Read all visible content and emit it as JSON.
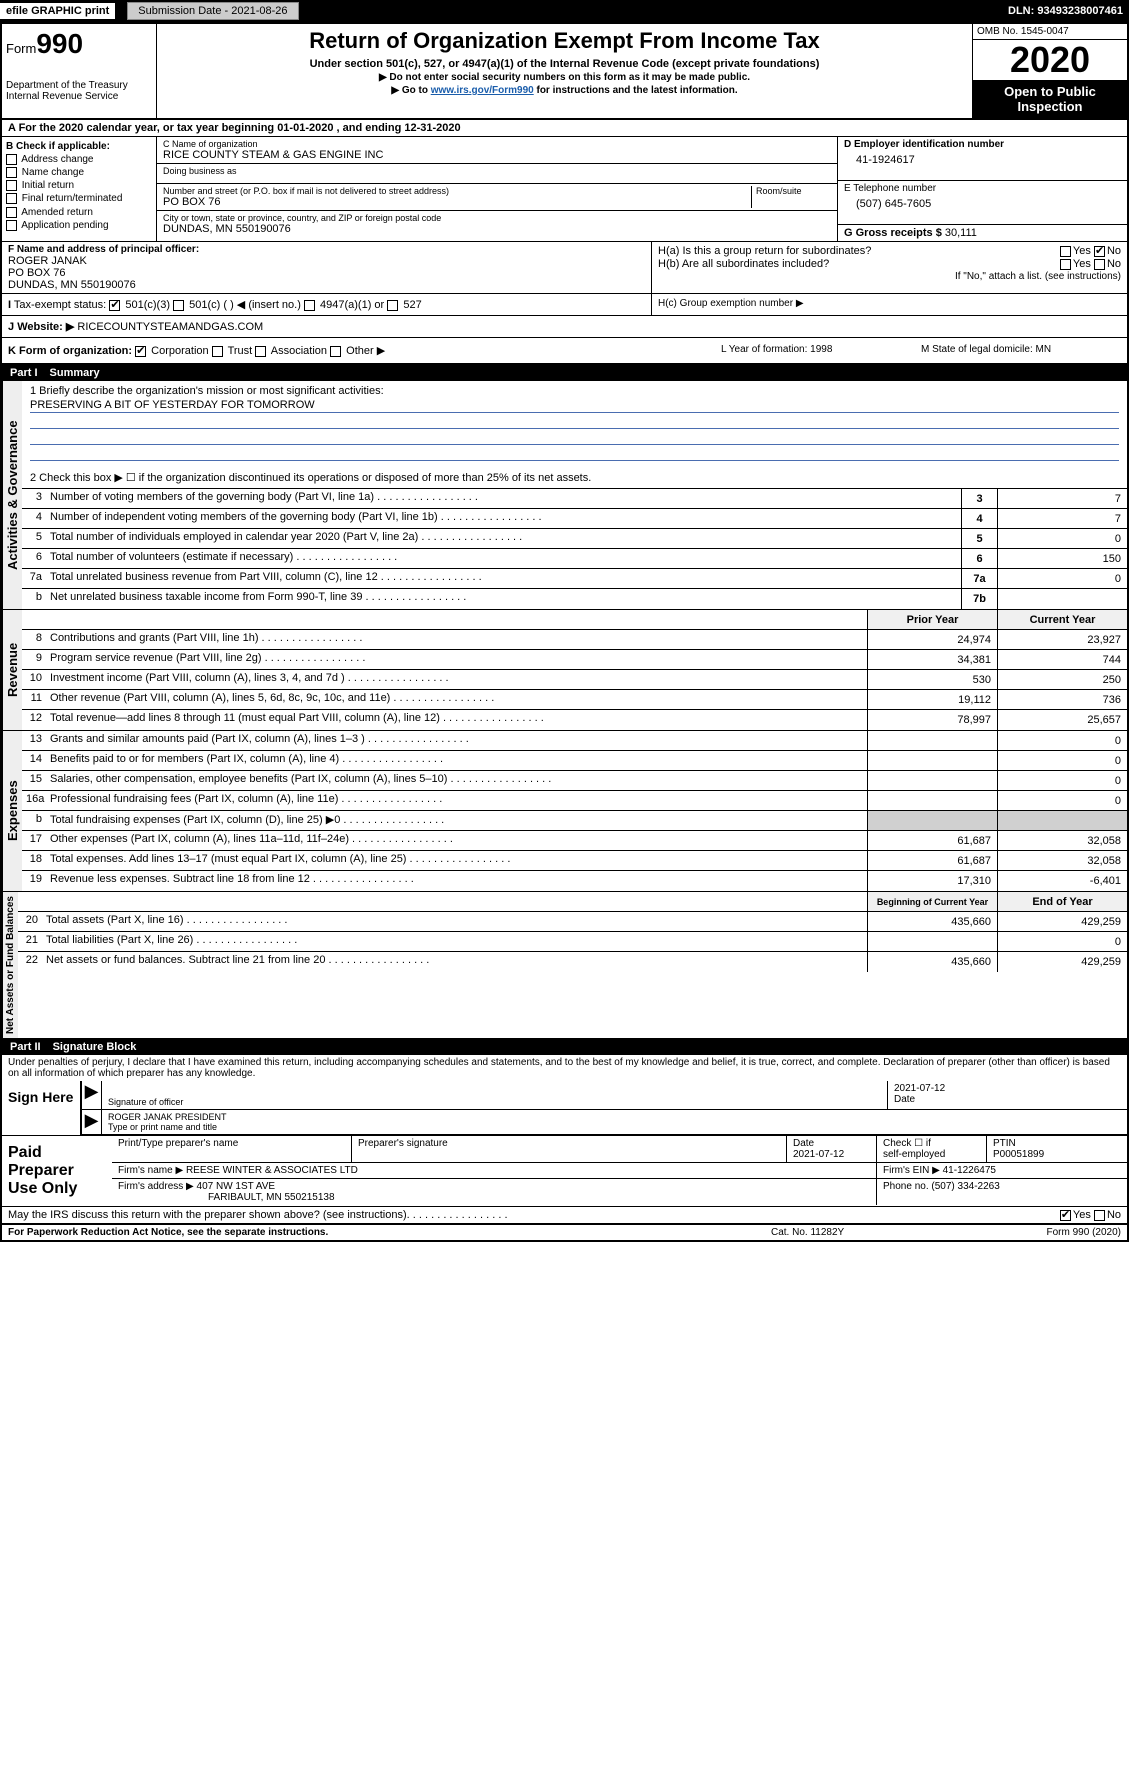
{
  "top": {
    "efile": "efile GRAPHIC print",
    "submission": "Submission Date - 2021-08-26",
    "dln": "DLN: 93493238007461"
  },
  "header": {
    "form_word": "Form",
    "form_num": "990",
    "dept": "Department of the Treasury\nInternal Revenue Service",
    "title": "Return of Organization Exempt From Income Tax",
    "sub": "Under section 501(c), 527, or 4947(a)(1) of the Internal Revenue Code (except private foundations)",
    "note1": "▶ Do not enter social security numbers on this form as it may be made public.",
    "note2_pre": "▶ Go to ",
    "note2_link": "www.irs.gov/Form990",
    "note2_post": " for instructions and the latest information.",
    "omb": "OMB No. 1545-0047",
    "year": "2020",
    "open": "Open to Public Inspection"
  },
  "row_a": "A For the 2020 calendar year, or tax year beginning 01-01-2020    , and ending 12-31-2020",
  "check_b": {
    "title": "B Check if applicable:",
    "items": [
      "Address change",
      "Name change",
      "Initial return",
      "Final return/terminated",
      "Amended return",
      "Application pending"
    ]
  },
  "org": {
    "c_label": "C Name of organization",
    "name": "RICE COUNTY STEAM & GAS ENGINE INC",
    "dba_label": "Doing business as",
    "dba": "",
    "addr_label": "Number and street (or P.O. box if mail is not delivered to street address)",
    "room_label": "Room/suite",
    "addr": "PO BOX 76",
    "city_label": "City or town, state or province, country, and ZIP or foreign postal code",
    "city": "DUNDAS, MN  550190076"
  },
  "col_d": {
    "d_label": "D Employer identification number",
    "ein": "41-1924617",
    "e_label": "E Telephone number",
    "phone": "(507) 645-7605",
    "g_label": "G Gross receipts $",
    "gross": "30,111"
  },
  "f": {
    "label": "F  Name and address of principal officer:",
    "name": "ROGER JANAK",
    "addr1": "PO BOX 76",
    "addr2": "DUNDAS, MN  550190076"
  },
  "h": {
    "a": "H(a)  Is this a group return for subordinates?",
    "b": "H(b)  Are all subordinates included?",
    "c": "H(c)  Group exemption number ▶",
    "note": "If \"No,\" attach a list. (see instructions)"
  },
  "i": {
    "label": "Tax-exempt status:",
    "opts": [
      "501(c)(3)",
      "501(c) (  ) ◀ (insert no.)",
      "4947(a)(1) or",
      "527"
    ]
  },
  "j": {
    "label": "J",
    "text": "Website: ▶",
    "val": "RICECOUNTYSTEAMANDGAS.COM"
  },
  "k": {
    "label": "K Form of organization:",
    "opts": [
      "Corporation",
      "Trust",
      "Association",
      "Other ▶"
    ],
    "l": "L Year of formation: 1998",
    "m": "M State of legal domicile: MN"
  },
  "part1": {
    "num": "Part I",
    "title": "Summary"
  },
  "mission": {
    "q": "1  Briefly describe the organization's mission or most significant activities:",
    "ans": "PRESERVING A BIT OF YESTERDAY FOR TOMORROW"
  },
  "line2": "2   Check this box ▶ ☐  if the organization discontinued its operations or disposed of more than 25% of its net assets.",
  "gov_lines": [
    {
      "n": "3",
      "t": "Number of voting members of the governing body (Part VI, line 1a)",
      "b": "3",
      "v": "7"
    },
    {
      "n": "4",
      "t": "Number of independent voting members of the governing body (Part VI, line 1b)",
      "b": "4",
      "v": "7"
    },
    {
      "n": "5",
      "t": "Total number of individuals employed in calendar year 2020 (Part V, line 2a)",
      "b": "5",
      "v": "0"
    },
    {
      "n": "6",
      "t": "Total number of volunteers (estimate if necessary)",
      "b": "6",
      "v": "150"
    },
    {
      "n": "7a",
      "t": "Total unrelated business revenue from Part VIII, column (C), line 12",
      "b": "7a",
      "v": "0"
    },
    {
      "n": "b",
      "t": "Net unrelated business taxable income from Form 990-T, line 39",
      "b": "7b",
      "v": ""
    }
  ],
  "rev_head": {
    "prior": "Prior Year",
    "curr": "Current Year"
  },
  "revenue": [
    {
      "n": "8",
      "t": "Contributions and grants (Part VIII, line 1h)",
      "p": "24,974",
      "c": "23,927"
    },
    {
      "n": "9",
      "t": "Program service revenue (Part VIII, line 2g)",
      "p": "34,381",
      "c": "744"
    },
    {
      "n": "10",
      "t": "Investment income (Part VIII, column (A), lines 3, 4, and 7d )",
      "p": "530",
      "c": "250"
    },
    {
      "n": "11",
      "t": "Other revenue (Part VIII, column (A), lines 5, 6d, 8c, 9c, 10c, and 11e)",
      "p": "19,112",
      "c": "736"
    },
    {
      "n": "12",
      "t": "Total revenue—add lines 8 through 11 (must equal Part VIII, column (A), line 12)",
      "p": "78,997",
      "c": "25,657"
    }
  ],
  "expenses": [
    {
      "n": "13",
      "t": "Grants and similar amounts paid (Part IX, column (A), lines 1–3 )",
      "p": "",
      "c": "0"
    },
    {
      "n": "14",
      "t": "Benefits paid to or for members (Part IX, column (A), line 4)",
      "p": "",
      "c": "0"
    },
    {
      "n": "15",
      "t": "Salaries, other compensation, employee benefits (Part IX, column (A), lines 5–10)",
      "p": "",
      "c": "0"
    },
    {
      "n": "16a",
      "t": "Professional fundraising fees (Part IX, column (A), line 11e)",
      "p": "",
      "c": "0"
    },
    {
      "n": "b",
      "t": "Total fundraising expenses (Part IX, column (D), line 25) ▶0",
      "p": "shade",
      "c": "shade"
    },
    {
      "n": "17",
      "t": "Other expenses (Part IX, column (A), lines 11a–11d, 11f–24e)",
      "p": "61,687",
      "c": "32,058"
    },
    {
      "n": "18",
      "t": "Total expenses. Add lines 13–17 (must equal Part IX, column (A), line 25)",
      "p": "61,687",
      "c": "32,058"
    },
    {
      "n": "19",
      "t": "Revenue less expenses. Subtract line 18 from line 12",
      "p": "17,310",
      "c": "-6,401"
    }
  ],
  "net_head": {
    "prior": "Beginning of Current Year",
    "curr": "End of Year"
  },
  "netassets": [
    {
      "n": "20",
      "t": "Total assets (Part X, line 16)",
      "p": "435,660",
      "c": "429,259"
    },
    {
      "n": "21",
      "t": "Total liabilities (Part X, line 26)",
      "p": "",
      "c": "0"
    },
    {
      "n": "22",
      "t": "Net assets or fund balances. Subtract line 21 from line 20",
      "p": "435,660",
      "c": "429,259"
    }
  ],
  "part2": {
    "num": "Part II",
    "title": "Signature Block"
  },
  "sig": {
    "text": "Under penalties of perjury, I declare that I have examined this return, including accompanying schedules and statements, and to the best of my knowledge and belief, it is true, correct, and complete. Declaration of preparer (other than officer) is based on all information of which preparer has any knowledge.",
    "sign_here": "Sign Here",
    "sig_officer": "Signature of officer",
    "date1": "2021-07-12",
    "date_label": "Date",
    "name_title": "ROGER JANAK  PRESIDENT",
    "type_label": "Type or print name and title"
  },
  "paid": {
    "label": "Paid Preparer Use Only",
    "h1": "Print/Type preparer's name",
    "h2": "Preparer's signature",
    "h3": "Date",
    "date": "2021-07-12",
    "h4_a": "Check ☐ if",
    "h4_b": "self-employed",
    "h5": "PTIN",
    "ptin": "P00051899",
    "firm_name_l": "Firm's name    ▶",
    "firm_name": "REESE WINTER & ASSOCIATES LTD",
    "firm_ein_l": "Firm's EIN ▶",
    "firm_ein": "41-1226475",
    "firm_addr_l": "Firm's address ▶",
    "firm_addr1": "407 NW 1ST AVE",
    "firm_addr2": "FARIBAULT, MN  550215138",
    "phone_l": "Phone no.",
    "phone": "(507) 334-2263"
  },
  "bottom": {
    "q": "May the IRS discuss this return with the preparer shown above? (see instructions)",
    "yes": "Yes",
    "no": "No"
  },
  "footer": {
    "left": "For Paperwork Reduction Act Notice, see the separate instructions.",
    "mid": "Cat. No. 11282Y",
    "right": "Form 990 (2020)"
  },
  "side": {
    "gov": "Activities & Governance",
    "rev": "Revenue",
    "exp": "Expenses",
    "net": "Net Assets or Fund Balances"
  }
}
